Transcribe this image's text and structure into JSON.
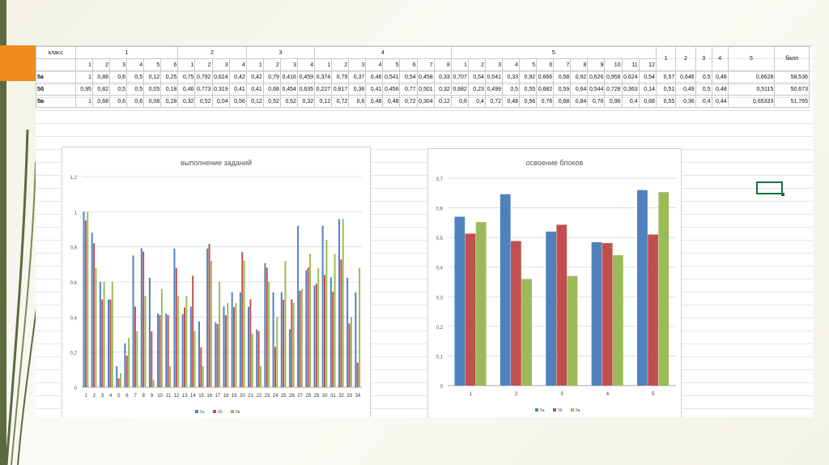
{
  "table": {
    "header_label": "класс",
    "blocks": [
      {
        "name": "1",
        "cols": [
          "1",
          "2",
          "3",
          "4",
          "5",
          "6"
        ]
      },
      {
        "name": "2",
        "cols": [
          "1",
          "2",
          "3",
          "4"
        ]
      },
      {
        "name": "3",
        "cols": [
          "1",
          "2",
          "3",
          "4"
        ]
      },
      {
        "name": "4",
        "cols": [
          "1",
          "2",
          "3",
          "4",
          "5",
          "6",
          "7",
          "8"
        ]
      },
      {
        "name": "5",
        "cols": [
          "1",
          "2",
          "3",
          "4",
          "5",
          "6",
          "7",
          "8",
          "9",
          "10",
          "11",
          "12"
        ]
      }
    ],
    "tail_cols": [
      "1",
      "2",
      "3",
      "4",
      "5",
      "балл"
    ],
    "rows": [
      {
        "label": "5а",
        "cells": [
          "1",
          "0,88",
          "0,6",
          "0,5",
          "0,12",
          "0,25",
          "0,75",
          "0,792",
          "0,624",
          "0,42",
          "0,42",
          "0,79",
          "0,416",
          "0,459",
          "0,374",
          "0,79",
          "0,37",
          "0,46",
          "0,541",
          "0,54",
          "0,458",
          "0,33",
          "0,707",
          "0,54",
          "0,541",
          "0,33",
          "0,92",
          "0,666",
          "0,58",
          "0,92",
          "0,626",
          "0,958",
          "0,624",
          "0,54",
          "0,57",
          "0,646",
          "0,5",
          "0,48",
          "0,6628",
          "58,536"
        ]
      },
      {
        "label": "5б",
        "cells": [
          "0,95",
          "0,82",
          "0,5",
          "0,5",
          "0,05",
          "0,18",
          "0,46",
          "0,773",
          "0,319",
          "0,41",
          "0,41",
          "0,68",
          "0,454",
          "0,635",
          "0,227",
          "0,817",
          "0,36",
          "0,41",
          "0,456",
          "0,77",
          "0,501",
          "0,32",
          "0,682",
          "0,23",
          "0,499",
          "0,5",
          "0,55",
          "0,682",
          "0,59",
          "0,64",
          "0,544",
          "0,728",
          "0,363",
          "0,14",
          "0,51",
          "0,49",
          "0,5",
          "0,48",
          "0,5115",
          "50,673"
        ]
      },
      {
        "label": "5в",
        "cells": [
          "1",
          "0,68",
          "0,6",
          "0,6",
          "0,08",
          "0,28",
          "0,32",
          "0,52",
          "0,04",
          "0,56",
          "0,12",
          "0,52",
          "0,52",
          "0,32",
          "0,12",
          "0,72",
          "0,6",
          "0,48",
          "0,48",
          "0,72",
          "0,304",
          "0,12",
          "0,6",
          "0,4",
          "0,72",
          "0,48",
          "0,56",
          "0,76",
          "0,68",
          "0,84",
          "0,76",
          "0,96",
          "0,4",
          "0,68",
          "0,55",
          "0,36",
          "0,4",
          "0,44",
          "0,65333",
          "51,765"
        ]
      }
    ]
  },
  "colors": {
    "5а": "#4f81bd",
    "5б": "#c0504d",
    "5в": "#9bbb59",
    "accent": "#f08b1d"
  },
  "chart_data": [
    {
      "type": "bar",
      "title": "выполнение заданий",
      "ylim": [
        0,
        1.2
      ],
      "yticks": [
        "0",
        "0,2",
        "0,4",
        "0,6",
        "0,8",
        "1",
        "1,2"
      ],
      "categories": [
        "1",
        "2",
        "3",
        "4",
        "5",
        "6",
        "7",
        "8",
        "9",
        "10",
        "11",
        "12",
        "13",
        "14",
        "15",
        "16",
        "17",
        "18",
        "19",
        "20",
        "21",
        "22",
        "23",
        "24",
        "25",
        "26",
        "27",
        "28",
        "29",
        "30",
        "31",
        "32",
        "33",
        "34"
      ],
      "series": [
        {
          "name": "5а",
          "values": [
            1,
            0.88,
            0.6,
            0.5,
            0.12,
            0.25,
            0.75,
            0.792,
            0.624,
            0.42,
            0.42,
            0.79,
            0.416,
            0.459,
            0.374,
            0.79,
            0.37,
            0.46,
            0.541,
            0.54,
            0.458,
            0.33,
            0.707,
            0.54,
            0.541,
            0.33,
            0.92,
            0.666,
            0.58,
            0.92,
            0.626,
            0.958,
            0.624,
            0.54
          ]
        },
        {
          "name": "5б",
          "values": [
            0.95,
            0.82,
            0.5,
            0.5,
            0.05,
            0.18,
            0.46,
            0.773,
            0.319,
            0.41,
            0.41,
            0.68,
            0.454,
            0.635,
            0.227,
            0.817,
            0.36,
            0.41,
            0.456,
            0.77,
            0.501,
            0.32,
            0.682,
            0.23,
            0.499,
            0.5,
            0.55,
            0.682,
            0.59,
            0.64,
            0.544,
            0.728,
            0.363,
            0.14
          ]
        },
        {
          "name": "5в",
          "values": [
            1,
            0.68,
            0.6,
            0.6,
            0.08,
            0.28,
            0.32,
            0.52,
            0.04,
            0.56,
            0.12,
            0.52,
            0.52,
            0.32,
            0.12,
            0.72,
            0.6,
            0.48,
            0.48,
            0.72,
            0.304,
            0.12,
            0.6,
            0.4,
            0.72,
            0.48,
            0.56,
            0.76,
            0.68,
            0.84,
            0.76,
            0.96,
            0.4,
            0.68
          ]
        }
      ],
      "legend": "bottom",
      "grid": true
    },
    {
      "type": "bar",
      "title": "освоение блоков",
      "ylim": [
        0,
        0.7
      ],
      "yticks": [
        "0",
        "0,1",
        "0,2",
        "0,3",
        "0,4",
        "0,5",
        "0,6",
        "0,7"
      ],
      "categories": [
        "1",
        "2",
        "3",
        "4",
        "5"
      ],
      "series": [
        {
          "name": "5а",
          "values": [
            0.57,
            0.646,
            0.52,
            0.484,
            0.66
          ]
        },
        {
          "name": "5б",
          "values": [
            0.513,
            0.488,
            0.543,
            0.481,
            0.51
          ]
        },
        {
          "name": "5в",
          "values": [
            0.552,
            0.36,
            0.37,
            0.44,
            0.653
          ]
        }
      ],
      "legend": "bottom",
      "grid": true
    }
  ]
}
